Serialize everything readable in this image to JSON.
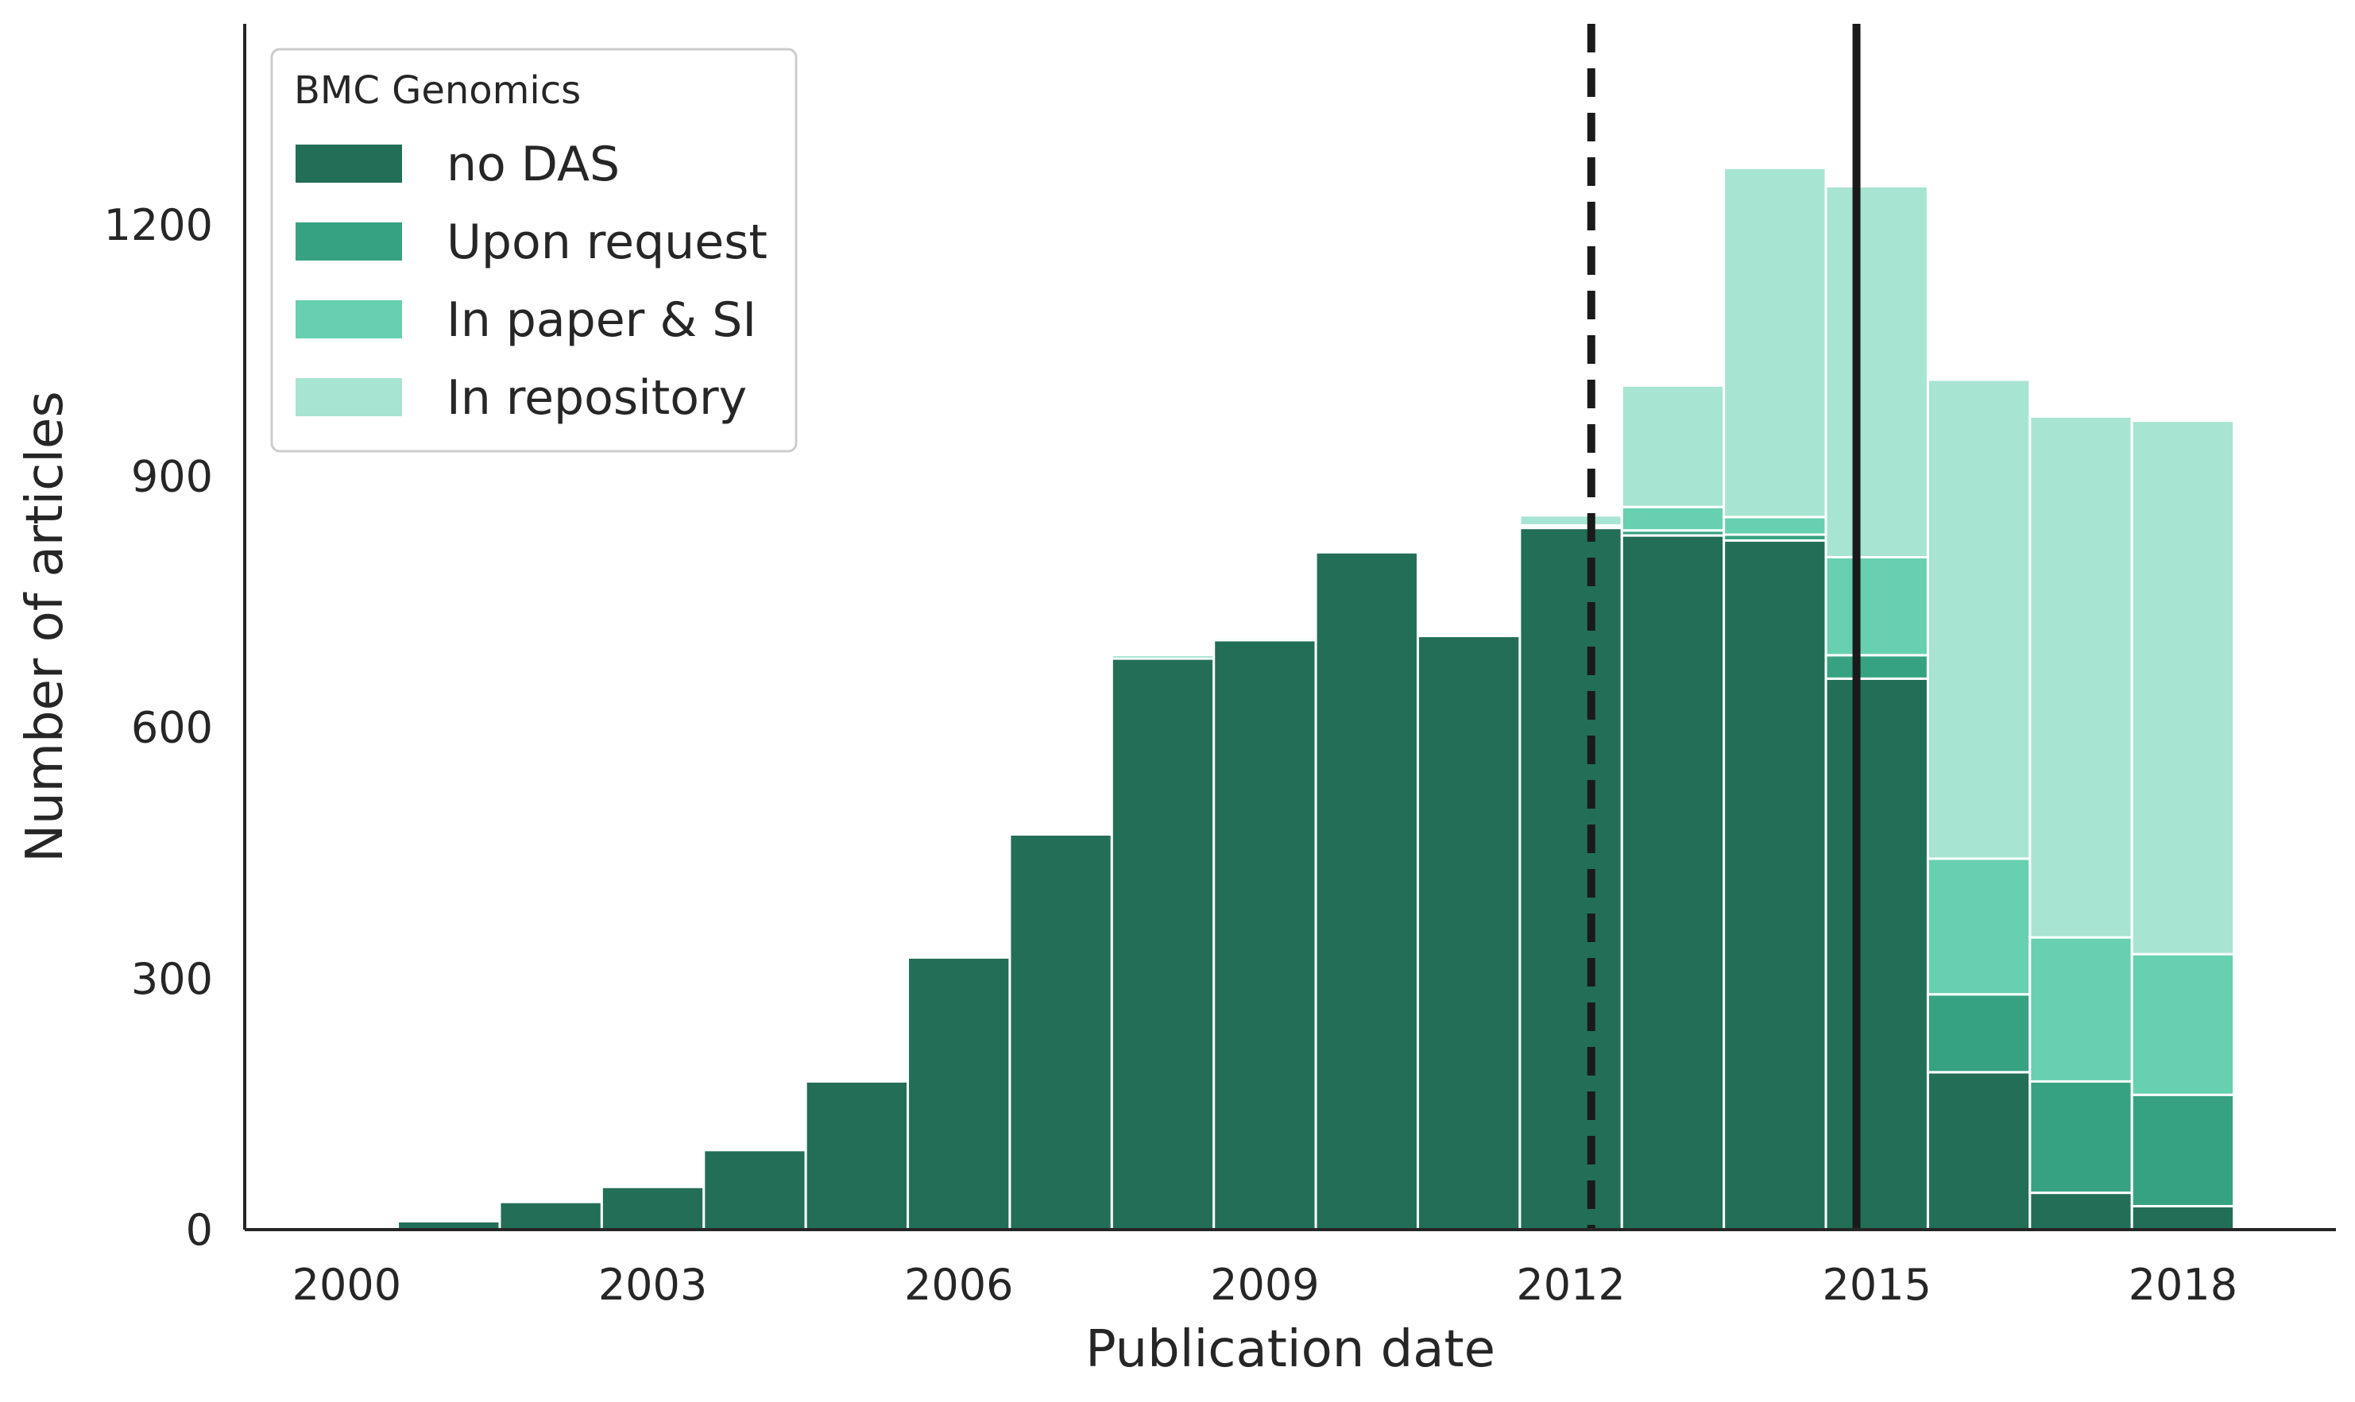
{
  "chart_data": {
    "type": "bar",
    "stacked": true,
    "xlabel": "Publication date",
    "ylabel": "Number of articles",
    "xlim": [
      1999.0,
      2019.5
    ],
    "ylim": [
      0,
      1440
    ],
    "x_ticks": [
      2000,
      2003,
      2006,
      2009,
      2012,
      2015,
      2018
    ],
    "y_ticks": [
      0,
      300,
      600,
      900,
      1200
    ],
    "bin_starts": [
      2000.5,
      2001.5,
      2002.5,
      2003.5,
      2004.5,
      2005.5,
      2006.5,
      2007.5,
      2008.5,
      2009.5,
      2010.5,
      2011.5,
      2012.5,
      2013.5,
      2014.5,
      2015.5,
      2016.5,
      2017.5
    ],
    "bin_width": 1.0,
    "legend": {
      "title": "BMC Genomics",
      "placement": "top-left"
    },
    "series": [
      {
        "name": "no DAS",
        "color": "#236e57",
        "values": [
          10,
          33,
          51,
          95,
          177,
          325,
          472,
          682,
          704,
          809,
          709,
          838,
          829,
          823,
          658,
          188,
          44,
          28
        ]
      },
      {
        "name": "Upon request",
        "color": "#36a281",
        "values": [
          0,
          0,
          0,
          0,
          0,
          0,
          0,
          0,
          0,
          0,
          0,
          0,
          6,
          7,
          28,
          93,
          133,
          133
        ]
      },
      {
        "name": "In paper & SI",
        "color": "#66d0b0",
        "values": [
          0,
          0,
          0,
          0,
          0,
          0,
          3,
          4,
          3,
          0,
          0,
          3,
          28,
          21,
          117,
          162,
          172,
          168
        ]
      },
      {
        "name": "In repository",
        "color": "#a8e4d2",
        "values": [
          0,
          0,
          0,
          0,
          0,
          0,
          2,
          2,
          2,
          2,
          0,
          12,
          145,
          417,
          443,
          572,
          622,
          637
        ]
      }
    ],
    "reference_lines": [
      {
        "x": 2012.2,
        "style": "dashed",
        "color": "#1a1a1a"
      },
      {
        "x": 2014.8,
        "style": "solid",
        "color": "#1a1a1a"
      }
    ]
  }
}
